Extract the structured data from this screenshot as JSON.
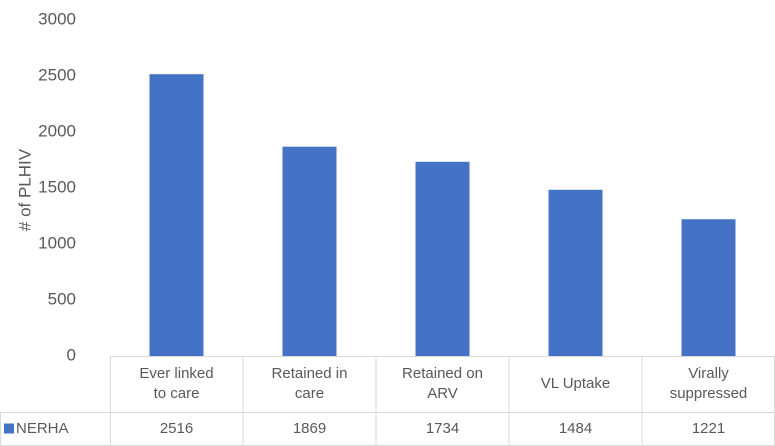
{
  "chart_data": {
    "type": "bar",
    "y_label": "# of PLHIV",
    "categories": [
      "Ever linked to care",
      "Retained in care",
      "Retained on ARV",
      "VL Uptake",
      "Virally suppressed"
    ],
    "series": [
      {
        "name": "NERHA",
        "color": "#4472c4",
        "values": [
          2516,
          1869,
          1734,
          1484,
          1221
        ]
      }
    ],
    "ylim": [
      0,
      3000
    ],
    "yticks": [
      0,
      500,
      1000,
      1500,
      2000,
      2500,
      3000
    ],
    "grid": false,
    "data_table": true
  }
}
